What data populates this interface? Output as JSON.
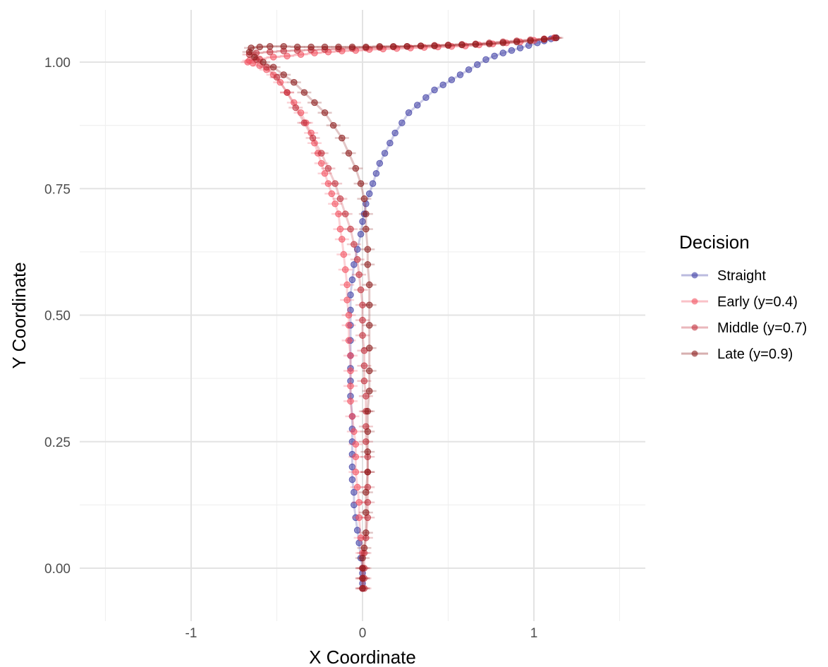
{
  "chart_data": {
    "type": "scatter",
    "title": "",
    "xlabel": "X Coordinate",
    "ylabel": "Y Coordinate",
    "xlim": [
      -1.5,
      1.5
    ],
    "ylim": [
      -0.08,
      1.1
    ],
    "x_ticks": [
      -1,
      0,
      1
    ],
    "x_tick_labels": [
      "-1",
      "0",
      "1"
    ],
    "y_ticks": [
      0,
      0.25,
      0.5,
      0.75,
      1.0
    ],
    "y_tick_labels": [
      "0.00",
      "0.25",
      "0.50",
      "0.75",
      "1.00"
    ],
    "grid": true,
    "legend": {
      "title": "Decision",
      "position": "right",
      "entries": [
        "Straight",
        "Early (y=0.4)",
        "Middle (y=0.7)",
        "Late (y=0.9)"
      ]
    },
    "series": [
      {
        "name": "Straight",
        "color": "#3b3ba3",
        "points": [
          [
            0.0,
            -0.04
          ],
          [
            0.0,
            -0.03
          ],
          [
            0.0,
            -0.02
          ],
          [
            0.0,
            -0.01
          ],
          [
            0.0,
            0.0
          ],
          [
            -0.01,
            0.02
          ],
          [
            -0.02,
            0.05
          ],
          [
            -0.03,
            0.075
          ],
          [
            -0.04,
            0.1
          ],
          [
            -0.05,
            0.125
          ],
          [
            -0.05,
            0.15
          ],
          [
            -0.06,
            0.175
          ],
          [
            -0.06,
            0.2
          ],
          [
            -0.06,
            0.225
          ],
          [
            -0.06,
            0.25
          ],
          [
            -0.06,
            0.275
          ],
          [
            -0.06,
            0.3
          ],
          [
            -0.07,
            0.34
          ],
          [
            -0.07,
            0.37
          ],
          [
            -0.07,
            0.395
          ],
          [
            -0.07,
            0.42
          ],
          [
            -0.07,
            0.45
          ],
          [
            -0.07,
            0.48
          ],
          [
            -0.07,
            0.51
          ],
          [
            -0.07,
            0.54
          ],
          [
            -0.06,
            0.57
          ],
          [
            -0.05,
            0.6
          ],
          [
            -0.03,
            0.63
          ],
          [
            -0.01,
            0.66
          ],
          [
            0.0,
            0.685
          ],
          [
            0.01,
            0.7
          ],
          [
            0.02,
            0.72
          ],
          [
            0.04,
            0.74
          ],
          [
            0.06,
            0.76
          ],
          [
            0.08,
            0.78
          ],
          [
            0.1,
            0.8
          ],
          [
            0.13,
            0.82
          ],
          [
            0.16,
            0.84
          ],
          [
            0.19,
            0.86
          ],
          [
            0.23,
            0.88
          ],
          [
            0.27,
            0.9
          ],
          [
            0.32,
            0.915
          ],
          [
            0.37,
            0.93
          ],
          [
            0.42,
            0.945
          ],
          [
            0.47,
            0.955
          ],
          [
            0.52,
            0.965
          ],
          [
            0.57,
            0.975
          ],
          [
            0.62,
            0.985
          ],
          [
            0.67,
            0.995
          ],
          [
            0.72,
            1.005
          ],
          [
            0.77,
            1.012
          ],
          [
            0.82,
            1.018
          ],
          [
            0.87,
            1.023
          ],
          [
            0.92,
            1.028
          ],
          [
            0.97,
            1.033
          ],
          [
            1.02,
            1.038
          ],
          [
            1.06,
            1.042
          ],
          [
            1.1,
            1.046
          ],
          [
            1.13,
            1.048
          ]
        ]
      },
      {
        "name": "Early (y=0.4)",
        "color": "#f2505f",
        "points": [
          [
            0.0,
            -0.04
          ],
          [
            0.0,
            -0.02
          ],
          [
            0.0,
            0.0
          ],
          [
            0.0,
            0.03
          ],
          [
            -0.01,
            0.06
          ],
          [
            -0.02,
            0.1
          ],
          [
            -0.02,
            0.13
          ],
          [
            -0.03,
            0.16
          ],
          [
            -0.04,
            0.19
          ],
          [
            -0.04,
            0.22
          ],
          [
            -0.04,
            0.245
          ],
          [
            -0.05,
            0.27
          ],
          [
            -0.06,
            0.3
          ],
          [
            -0.07,
            0.33
          ],
          [
            -0.07,
            0.36
          ],
          [
            -0.07,
            0.39
          ],
          [
            -0.07,
            0.42
          ],
          [
            -0.08,
            0.45
          ],
          [
            -0.08,
            0.48
          ],
          [
            -0.08,
            0.5
          ],
          [
            -0.09,
            0.53
          ],
          [
            -0.09,
            0.56
          ],
          [
            -0.1,
            0.59
          ],
          [
            -0.11,
            0.62
          ],
          [
            -0.12,
            0.65
          ],
          [
            -0.13,
            0.67
          ],
          [
            -0.14,
            0.7
          ],
          [
            -0.16,
            0.72
          ],
          [
            -0.18,
            0.74
          ],
          [
            -0.2,
            0.76
          ],
          [
            -0.22,
            0.78
          ],
          [
            -0.24,
            0.8
          ],
          [
            -0.26,
            0.82
          ],
          [
            -0.28,
            0.84
          ],
          [
            -0.3,
            0.86
          ],
          [
            -0.33,
            0.88
          ],
          [
            -0.36,
            0.9
          ],
          [
            -0.4,
            0.92
          ],
          [
            -0.44,
            0.94
          ],
          [
            -0.48,
            0.96
          ],
          [
            -0.52,
            0.975
          ],
          [
            -0.56,
            0.985
          ],
          [
            -0.6,
            0.993
          ],
          [
            -0.64,
            0.998
          ],
          [
            -0.67,
            1.0
          ],
          [
            -0.66,
            1.003
          ],
          [
            -0.6,
            1.006
          ],
          [
            -0.52,
            1.01
          ],
          [
            -0.44,
            1.012
          ],
          [
            -0.36,
            1.015
          ],
          [
            -0.28,
            1.018
          ],
          [
            -0.2,
            1.02
          ],
          [
            -0.12,
            1.022
          ],
          [
            -0.04,
            1.023
          ],
          [
            0.04,
            1.025
          ],
          [
            0.12,
            1.026
          ],
          [
            0.2,
            1.027
          ],
          [
            0.28,
            1.028
          ],
          [
            0.36,
            1.029
          ],
          [
            0.44,
            1.03
          ],
          [
            0.52,
            1.031
          ],
          [
            0.6,
            1.032
          ],
          [
            0.68,
            1.034
          ],
          [
            0.76,
            1.036
          ],
          [
            0.84,
            1.038
          ],
          [
            0.92,
            1.04
          ],
          [
            1.0,
            1.043
          ],
          [
            1.06,
            1.045
          ],
          [
            1.12,
            1.048
          ]
        ]
      },
      {
        "name": "Middle (y=0.7)",
        "color": "#c2303c",
        "points": [
          [
            0.01,
            -0.04
          ],
          [
            0.01,
            -0.02
          ],
          [
            0.01,
            0.0
          ],
          [
            0.01,
            0.03
          ],
          [
            0.02,
            0.06
          ],
          [
            0.03,
            0.1
          ],
          [
            0.03,
            0.13
          ],
          [
            0.03,
            0.16
          ],
          [
            0.03,
            0.19
          ],
          [
            0.03,
            0.22
          ],
          [
            0.02,
            0.25
          ],
          [
            0.02,
            0.28
          ],
          [
            0.02,
            0.31
          ],
          [
            0.02,
            0.34
          ],
          [
            0.01,
            0.37
          ],
          [
            0.01,
            0.4
          ],
          [
            0.01,
            0.43
          ],
          [
            0.0,
            0.46
          ],
          [
            0.0,
            0.49
          ],
          [
            0.0,
            0.52
          ],
          [
            -0.01,
            0.55
          ],
          [
            -0.02,
            0.58
          ],
          [
            -0.03,
            0.61
          ],
          [
            -0.05,
            0.64
          ],
          [
            -0.07,
            0.67
          ],
          [
            -0.1,
            0.7
          ],
          [
            -0.13,
            0.73
          ],
          [
            -0.16,
            0.76
          ],
          [
            -0.2,
            0.79
          ],
          [
            -0.24,
            0.82
          ],
          [
            -0.29,
            0.85
          ],
          [
            -0.34,
            0.88
          ],
          [
            -0.39,
            0.91
          ],
          [
            -0.44,
            0.94
          ],
          [
            -0.5,
            0.97
          ],
          [
            -0.56,
            0.99
          ],
          [
            -0.62,
            1.005
          ],
          [
            -0.66,
            1.015
          ],
          [
            -0.62,
            1.018
          ],
          [
            -0.54,
            1.02
          ],
          [
            -0.46,
            1.022
          ],
          [
            -0.38,
            1.023
          ],
          [
            -0.3,
            1.024
          ],
          [
            -0.22,
            1.025
          ],
          [
            -0.14,
            1.026
          ],
          [
            -0.06,
            1.027
          ],
          [
            0.02,
            1.028
          ],
          [
            0.1,
            1.029
          ],
          [
            0.18,
            1.03
          ],
          [
            0.26,
            1.031
          ],
          [
            0.34,
            1.032
          ],
          [
            0.42,
            1.033
          ],
          [
            0.5,
            1.034
          ],
          [
            0.58,
            1.035
          ],
          [
            0.66,
            1.036
          ],
          [
            0.74,
            1.038
          ],
          [
            0.82,
            1.04
          ],
          [
            0.9,
            1.042
          ],
          [
            0.98,
            1.044
          ],
          [
            1.06,
            1.046
          ],
          [
            1.12,
            1.048
          ]
        ]
      },
      {
        "name": "Late (y=0.9)",
        "color": "#8b1a1a",
        "points": [
          [
            0.0,
            -0.04
          ],
          [
            0.0,
            -0.02
          ],
          [
            0.0,
            0.0
          ],
          [
            0.0,
            0.02
          ],
          [
            0.01,
            0.04
          ],
          [
            0.02,
            0.07
          ],
          [
            0.02,
            0.11
          ],
          [
            0.02,
            0.15
          ],
          [
            0.03,
            0.19
          ],
          [
            0.03,
            0.23
          ],
          [
            0.03,
            0.27
          ],
          [
            0.03,
            0.31
          ],
          [
            0.04,
            0.35
          ],
          [
            0.04,
            0.39
          ],
          [
            0.04,
            0.435
          ],
          [
            0.04,
            0.48
          ],
          [
            0.04,
            0.52
          ],
          [
            0.04,
            0.56
          ],
          [
            0.03,
            0.6
          ],
          [
            0.03,
            0.63
          ],
          [
            0.02,
            0.67
          ],
          [
            0.02,
            0.7
          ],
          [
            0.01,
            0.73
          ],
          [
            -0.01,
            0.76
          ],
          [
            -0.04,
            0.79
          ],
          [
            -0.08,
            0.82
          ],
          [
            -0.12,
            0.85
          ],
          [
            -0.17,
            0.875
          ],
          [
            -0.22,
            0.9
          ],
          [
            -0.28,
            0.92
          ],
          [
            -0.34,
            0.94
          ],
          [
            -0.4,
            0.96
          ],
          [
            -0.46,
            0.975
          ],
          [
            -0.52,
            0.99
          ],
          [
            -0.58,
            1.0
          ],
          [
            -0.63,
            1.01
          ],
          [
            -0.66,
            1.02
          ],
          [
            -0.65,
            1.028
          ],
          [
            -0.6,
            1.03
          ],
          [
            -0.54,
            1.031
          ],
          [
            -0.46,
            1.031
          ],
          [
            -0.38,
            1.03
          ],
          [
            -0.3,
            1.03
          ],
          [
            -0.22,
            1.03
          ],
          [
            -0.14,
            1.03
          ],
          [
            -0.06,
            1.03
          ],
          [
            0.02,
            1.03
          ],
          [
            0.1,
            1.031
          ],
          [
            0.18,
            1.031
          ],
          [
            0.26,
            1.031
          ],
          [
            0.34,
            1.032
          ],
          [
            0.42,
            1.032
          ],
          [
            0.5,
            1.033
          ],
          [
            0.58,
            1.034
          ],
          [
            0.66,
            1.035
          ],
          [
            0.74,
            1.036
          ],
          [
            0.82,
            1.038
          ],
          [
            0.9,
            1.04
          ],
          [
            0.98,
            1.042
          ],
          [
            1.06,
            1.045
          ],
          [
            1.13,
            1.048
          ]
        ]
      }
    ]
  }
}
